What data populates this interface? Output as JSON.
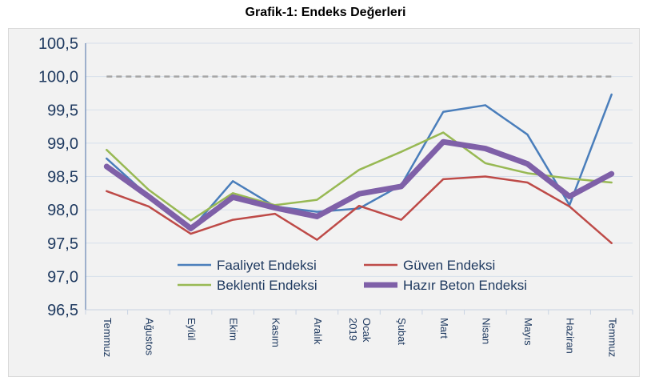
{
  "chart_data": {
    "type": "line",
    "title": "Grafik-1: Endeks Değerleri",
    "xlabel": "",
    "ylabel": "",
    "categories": [
      "Temmuz",
      "Ağustos",
      "Eylül",
      "Ekim",
      "Kasım",
      "Aralık",
      "Ocak 2019",
      "Şubat",
      "Mart",
      "Nisan",
      "Mayıs",
      "Haziran",
      "Temmuz"
    ],
    "ylim": [
      96.5,
      100.5
    ],
    "yticks": [
      "96,5",
      "97,0",
      "97,5",
      "98,0",
      "98,5",
      "99,0",
      "99,5",
      "100,0",
      "100,5"
    ],
    "ytick_values": [
      96.5,
      97.0,
      97.5,
      98.0,
      98.5,
      99.0,
      99.5,
      100.0,
      100.5
    ],
    "grid": true,
    "legend_position": "bottom-center inside",
    "reference_line": {
      "value": 100.0,
      "style": "dashed",
      "color": "#a6a6a6"
    },
    "series": [
      {
        "name": "Faaliyet Endeksi",
        "color": "#4a7ebb",
        "width": 2.5,
        "values": [
          98.77,
          98.2,
          97.7,
          98.43,
          98.05,
          97.97,
          98.02,
          98.37,
          99.47,
          99.57,
          99.13,
          98.07,
          99.73
        ]
      },
      {
        "name": "Güven Endeksi",
        "color": "#be4b48",
        "width": 2.5,
        "values": [
          98.28,
          98.05,
          97.64,
          97.85,
          97.94,
          97.55,
          98.06,
          97.85,
          98.46,
          98.5,
          98.41,
          98.05,
          97.5
        ]
      },
      {
        "name": "Beklenti Endeksi",
        "color": "#98b954",
        "width": 2.5,
        "values": [
          98.9,
          98.3,
          97.84,
          98.25,
          98.07,
          98.15,
          98.6,
          98.87,
          99.16,
          98.7,
          98.55,
          98.47,
          98.41
        ]
      },
      {
        "name": "Hazır Beton Endeksi",
        "color": "#7f60a8",
        "width": 7,
        "values": [
          98.65,
          98.2,
          97.72,
          98.19,
          98.03,
          97.9,
          98.24,
          98.35,
          99.02,
          98.92,
          98.69,
          98.2,
          98.54
        ]
      }
    ]
  }
}
